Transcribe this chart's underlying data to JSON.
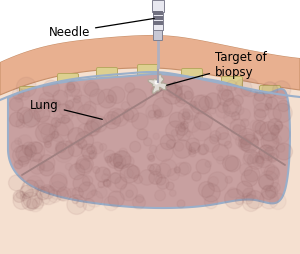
{
  "bg_color": "#ffffff",
  "skin_color": "#e8b090",
  "skin_edge_color": "#c8906a",
  "cavity_color": "#f5e0d0",
  "lung_color": "#c8a0a0",
  "lung_darker_color": "#b89090",
  "lung_edge_color": "#9aafca",
  "pleura_color": "#9aafca",
  "rib_color": "#ddd090",
  "rib_edge_color": "#b8a860",
  "fissure_color": "#a08080",
  "target_color": "#e0dbd5",
  "target_edge_color": "#b0a898",
  "needle_light": "#e8e8f0",
  "needle_mid": "#c8c8d5",
  "needle_dark": "#808090",
  "needle_band": "#707080",
  "label_fontsize": 8.5,
  "label_color": "#000000",
  "labels": {
    "needle": "Needle",
    "lung": "Lung",
    "target": "Target of\nbiopsy"
  }
}
